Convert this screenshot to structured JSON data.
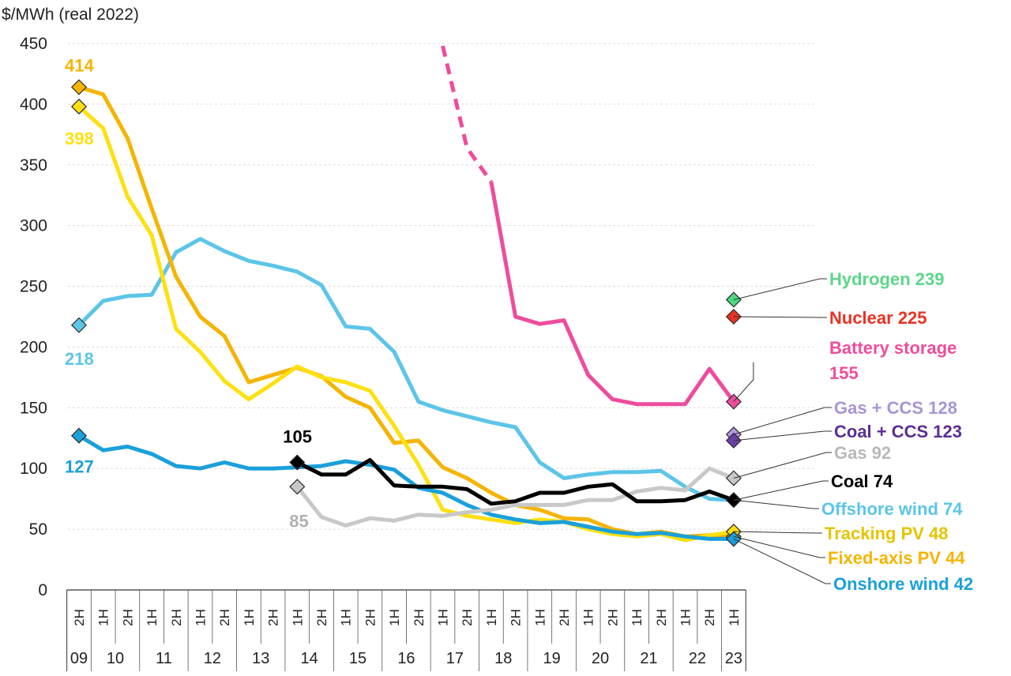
{
  "chart_data": {
    "type": "line",
    "unit_label": "$/MWh (real 2022)",
    "ylim": [
      0,
      450
    ],
    "yticks": [
      0,
      50,
      100,
      150,
      200,
      250,
      300,
      350,
      400,
      450
    ],
    "x_half_labels": [
      "2H",
      "1H",
      "2H",
      "1H",
      "2H",
      "1H",
      "2H",
      "1H",
      "2H",
      "1H",
      "2H",
      "1H",
      "2H",
      "1H",
      "2H",
      "1H",
      "2H",
      "1H",
      "2H",
      "1H",
      "2H",
      "1H",
      "2H",
      "1H",
      "2H",
      "1H",
      "2H",
      "1H"
    ],
    "x_years": [
      {
        "label": "09",
        "start": 0,
        "end": 0
      },
      {
        "label": "10",
        "start": 1,
        "end": 2
      },
      {
        "label": "11",
        "start": 3,
        "end": 4
      },
      {
        "label": "12",
        "start": 5,
        "end": 6
      },
      {
        "label": "13",
        "start": 7,
        "end": 8
      },
      {
        "label": "14",
        "start": 9,
        "end": 10
      },
      {
        "label": "15",
        "start": 11,
        "end": 12
      },
      {
        "label": "16",
        "start": 13,
        "end": 14
      },
      {
        "label": "17",
        "start": 15,
        "end": 16
      },
      {
        "label": "18",
        "start": 17,
        "end": 18
      },
      {
        "label": "19",
        "start": 19,
        "end": 20
      },
      {
        "label": "20",
        "start": 21,
        "end": 22
      },
      {
        "label": "21",
        "start": 23,
        "end": 24
      },
      {
        "label": "22",
        "start": 25,
        "end": 26
      },
      {
        "label": "23",
        "start": 27,
        "end": 27
      }
    ],
    "grid": "horizontal",
    "series": [
      {
        "name": "Offshore wind",
        "color": "#5cc5e8",
        "start": 0,
        "values": [
          218,
          238,
          242,
          243,
          278,
          289,
          279,
          271,
          267,
          262,
          251,
          217,
          215,
          196,
          155,
          148,
          143,
          138,
          134,
          105,
          92,
          95,
          97,
          97,
          98,
          85,
          75,
          74
        ],
        "start_label": "218",
        "end_label": "Offshore wind  74"
      },
      {
        "name": "Fixed-axis PV",
        "color": "#f5b400",
        "start": 0,
        "values": [
          414,
          408,
          372,
          314,
          258,
          225,
          209,
          171,
          177,
          183,
          176,
          159,
          150,
          121,
          123,
          101,
          92,
          80,
          70,
          66,
          59,
          58,
          50,
          46,
          48,
          44,
          45,
          44
        ],
        "start_label": "414",
        "end_label": "Fixed-axis PV  44"
      },
      {
        "name": "Tracking PV",
        "color": "#ffe010",
        "start": 0,
        "values": [
          398,
          380,
          324,
          292,
          215,
          196,
          172,
          157,
          170,
          184,
          175,
          171,
          164,
          135,
          103,
          66,
          61,
          58,
          55,
          58,
          56,
          50,
          46,
          44,
          46,
          41,
          45,
          48
        ],
        "start_label": "398",
        "end_label": "Tracking PV  48"
      },
      {
        "name": "Onshore wind",
        "color": "#1aa0da",
        "start": 0,
        "values": [
          127,
          115,
          118,
          112,
          102,
          100,
          105,
          100,
          100,
          101,
          102,
          106,
          103,
          99,
          84,
          80,
          70,
          62,
          58,
          55,
          56,
          52,
          48,
          46,
          47,
          44,
          42,
          42
        ],
        "start_label": "127",
        "end_label": "Onshore wind  42"
      },
      {
        "name": "Gas",
        "color": "#c8c8c8",
        "start": 9,
        "values": [
          85,
          60,
          53,
          59,
          57,
          62,
          61,
          64,
          66,
          70,
          70,
          70,
          74,
          74,
          81,
          84,
          82,
          100,
          92
        ],
        "start_label": "85",
        "end_label": "Gas  92"
      },
      {
        "name": "Coal",
        "color": "#000000",
        "start": 9,
        "values": [
          105,
          95,
          95,
          107,
          86,
          85,
          85,
          83,
          71,
          73,
          80,
          80,
          85,
          87,
          73,
          73,
          74,
          81,
          74
        ],
        "start_label": "105",
        "end_label": "Coal  74"
      },
      {
        "name": "Battery storage",
        "color": "#ee4c9e",
        "start": 15,
        "dashed_until": 17,
        "values": [
          448,
          364,
          336,
          225,
          219,
          222,
          177,
          157,
          153,
          153,
          153,
          182,
          155
        ],
        "end_label_line1": "Battery storage",
        "end_label_line2": "155"
      }
    ],
    "single_points": [
      {
        "name": "Hydrogen",
        "color": "#4dd882",
        "value": 239,
        "label": "Hydrogen  239",
        "label_color": "#5dd68a"
      },
      {
        "name": "Nuclear",
        "color": "#ea3223",
        "value": 225,
        "label": "Nuclear  225",
        "label_color": "#ea3223"
      },
      {
        "name": "Gas + CCS",
        "color": "#b39ae0",
        "value": 128,
        "label": "Gas + CCS  128",
        "label_color": "#a894d8"
      },
      {
        "name": "Coal + CCS",
        "color": "#6e3fa8",
        "value": 123,
        "label": "Coal + CCS  123",
        "label_color": "#5b2d95"
      }
    ]
  }
}
